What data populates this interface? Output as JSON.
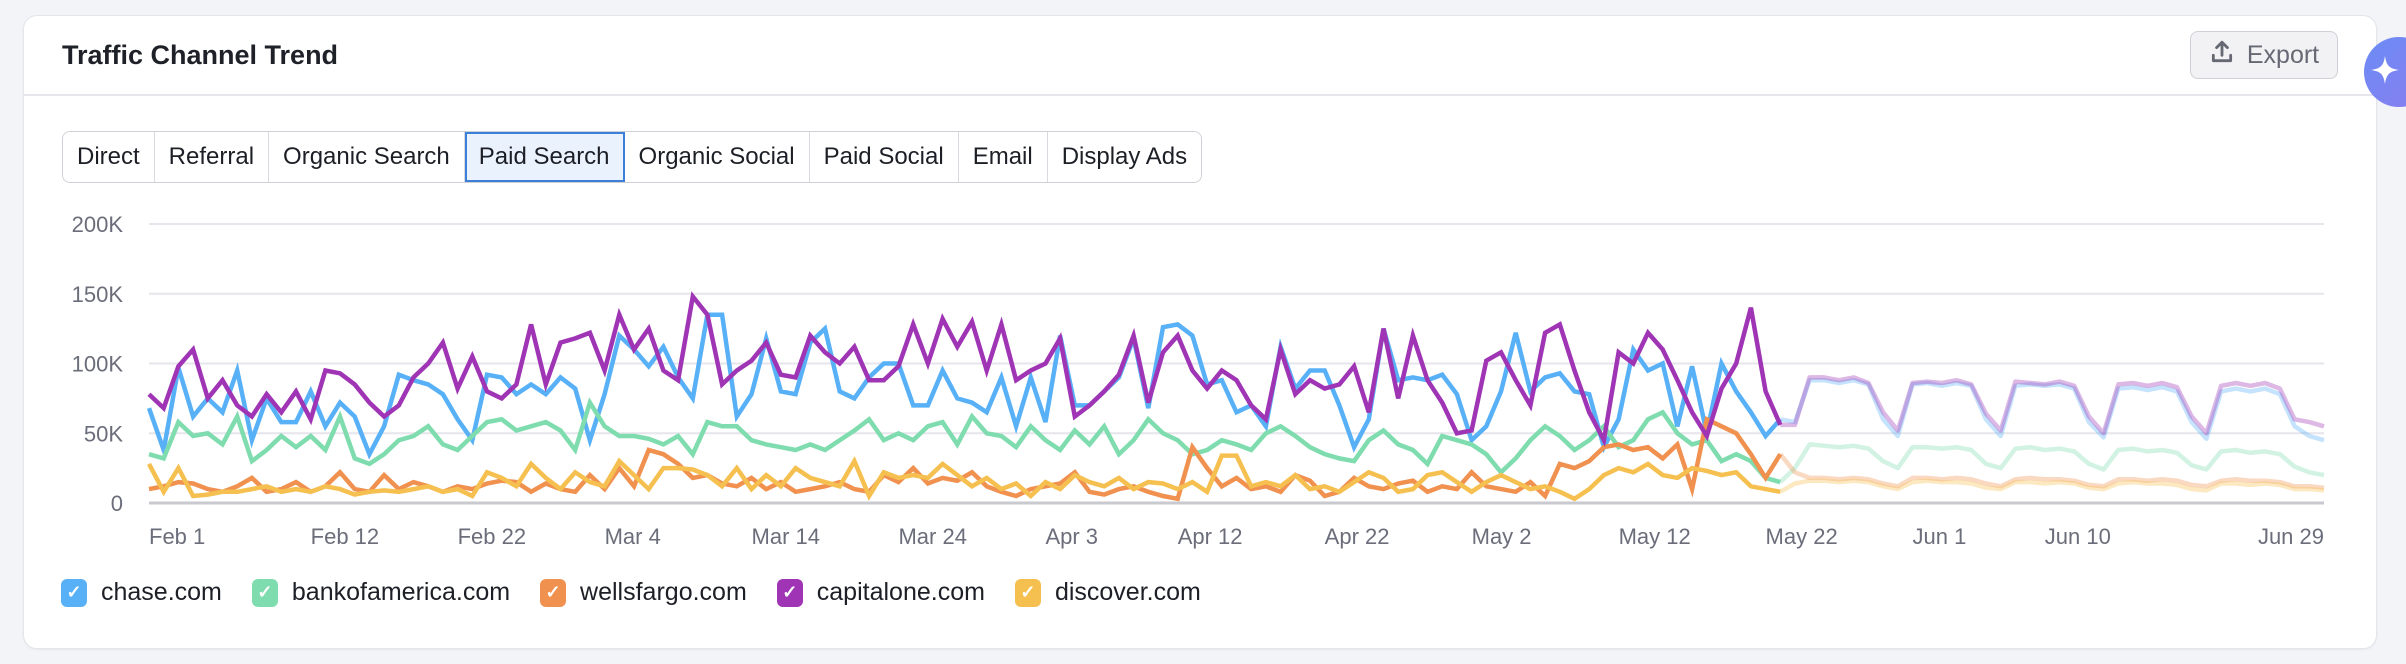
{
  "header": {
    "title": "Traffic Channel Trend",
    "export_label": "Export"
  },
  "tabs": [
    {
      "label": "Direct",
      "active": false
    },
    {
      "label": "Referral",
      "active": false
    },
    {
      "label": "Organic Search",
      "active": false
    },
    {
      "label": "Paid Search",
      "active": true
    },
    {
      "label": "Organic Social",
      "active": false
    },
    {
      "label": "Paid Social",
      "active": false
    },
    {
      "label": "Email",
      "active": false
    },
    {
      "label": "Display Ads",
      "active": false
    }
  ],
  "chart_data": {
    "type": "line",
    "title": "Traffic Channel Trend",
    "subtitle": "Paid Search",
    "ylim": [
      0,
      200000
    ],
    "y_ticks": [
      {
        "value": 0,
        "label": "0"
      },
      {
        "value": 50000,
        "label": "50K"
      },
      {
        "value": 100000,
        "label": "100K"
      },
      {
        "value": 150000,
        "label": "150K"
      },
      {
        "value": 200000,
        "label": "200K"
      }
    ],
    "x_start": "Feb 1",
    "x_end": "Jun 29",
    "x_days": 149,
    "forecast_start": "May 23",
    "x_ticks": [
      {
        "day": 0,
        "label": "Feb 1"
      },
      {
        "day": 11,
        "label": "Feb 12"
      },
      {
        "day": 21,
        "label": "Feb 22"
      },
      {
        "day": 31,
        "label": "Mar 4"
      },
      {
        "day": 41,
        "label": "Mar 14"
      },
      {
        "day": 51,
        "label": "Mar 24"
      },
      {
        "day": 61,
        "label": "Apr 3"
      },
      {
        "day": 70,
        "label": "Apr 12"
      },
      {
        "day": 80,
        "label": "Apr 22"
      },
      {
        "day": 90,
        "label": "May 2"
      },
      {
        "day": 100,
        "label": "May 12"
      },
      {
        "day": 110,
        "label": "May 22"
      },
      {
        "day": 120,
        "label": "Jun 1"
      },
      {
        "day": 129,
        "label": "Jun 10"
      },
      {
        "day": 148,
        "label": "Jun 29"
      }
    ],
    "value_unit": "thousands",
    "grid": true,
    "legend_position": "bottom-left",
    "series": [
      {
        "name": "chase.com",
        "color": "#58b0f7",
        "checked": true,
        "actual": [
          68,
          38,
          97,
          62,
          75,
          65,
          95,
          45,
          75,
          58,
          58,
          80,
          55,
          72,
          62,
          35,
          55,
          92,
          88,
          85,
          78,
          60,
          45,
          92,
          90,
          78,
          85,
          78,
          90,
          82,
          45,
          78,
          120,
          110,
          98,
          112,
          90,
          75,
          135,
          135,
          62,
          78,
          118,
          80,
          78,
          115,
          125,
          80,
          75,
          90,
          100,
          100,
          70,
          70,
          95,
          75,
          72,
          65,
          90,
          55,
          90,
          58,
          120,
          70,
          70,
          80,
          90,
          118,
          68,
          126,
          128,
          120,
          85,
          88,
          65,
          70,
          55,
          112,
          82,
          95,
          95,
          70,
          40,
          60,
          125,
          88,
          90,
          88,
          92,
          78,
          45,
          55,
          80,
          122,
          80,
          90,
          93,
          80,
          78,
          40,
          60,
          110,
          95,
          100,
          55,
          98,
          50,
          100,
          80,
          65,
          48,
          60
        ],
        "forecast": [
          58,
          88,
          88,
          86,
          88,
          85,
          60,
          48,
          85,
          86,
          84,
          86,
          84,
          60,
          48,
          84,
          85,
          84,
          85,
          82,
          58,
          47,
          82,
          83,
          81,
          83,
          80,
          58,
          46,
          80,
          82,
          80,
          82,
          78,
          55,
          48,
          45
        ]
      },
      {
        "name": "bankofamerica.com",
        "color": "#7fdcae",
        "checked": true,
        "actual": [
          35,
          32,
          58,
          48,
          50,
          42,
          62,
          30,
          38,
          48,
          40,
          48,
          38,
          62,
          32,
          28,
          35,
          45,
          48,
          55,
          42,
          38,
          48,
          58,
          60,
          52,
          55,
          58,
          52,
          38,
          72,
          55,
          48,
          48,
          46,
          42,
          48,
          35,
          58,
          55,
          55,
          45,
          42,
          40,
          38,
          42,
          38,
          45,
          52,
          60,
          45,
          50,
          45,
          55,
          58,
          42,
          62,
          50,
          48,
          40,
          55,
          45,
          38,
          52,
          42,
          55,
          35,
          45,
          60,
          50,
          45,
          35,
          38,
          45,
          42,
          38,
          50,
          55,
          48,
          40,
          35,
          32,
          30,
          45,
          52,
          42,
          38,
          28,
          48,
          45,
          42,
          35,
          22,
          32,
          45,
          55,
          48,
          38,
          45,
          55,
          40,
          45,
          60,
          65,
          50,
          42,
          45,
          30,
          35,
          30,
          18,
          15
        ],
        "forecast": [
          25,
          42,
          41,
          40,
          41,
          39,
          30,
          25,
          40,
          40,
          39,
          40,
          38,
          28,
          25,
          39,
          40,
          38,
          39,
          37,
          28,
          24,
          38,
          39,
          37,
          38,
          36,
          27,
          24,
          37,
          38,
          36,
          37,
          35,
          26,
          22,
          20
        ]
      },
      {
        "name": "wellsfargo.com",
        "color": "#f09150",
        "checked": true,
        "actual": [
          10,
          12,
          15,
          14,
          10,
          8,
          12,
          18,
          8,
          10,
          15,
          8,
          12,
          22,
          10,
          8,
          20,
          10,
          15,
          12,
          8,
          12,
          10,
          14,
          16,
          15,
          8,
          14,
          10,
          8,
          20,
          10,
          25,
          12,
          38,
          35,
          28,
          18,
          20,
          14,
          12,
          18,
          10,
          15,
          8,
          10,
          12,
          15,
          10,
          8,
          20,
          15,
          25,
          14,
          18,
          16,
          22,
          12,
          8,
          5,
          10,
          12,
          14,
          22,
          8,
          6,
          10,
          12,
          8,
          5,
          3,
          40,
          25,
          12,
          18,
          10,
          12,
          8,
          20,
          16,
          5,
          8,
          18,
          12,
          10,
          14,
          16,
          8,
          12,
          10,
          22,
          12,
          10,
          8,
          15,
          5,
          28,
          25,
          30,
          40,
          42,
          38,
          40,
          32,
          42,
          10,
          60,
          55,
          50,
          35,
          18,
          35
        ],
        "forecast": [
          22,
          18,
          18,
          17,
          18,
          17,
          14,
          12,
          18,
          18,
          17,
          18,
          17,
          14,
          12,
          17,
          18,
          17,
          17,
          16,
          13,
          12,
          17,
          17,
          16,
          17,
          16,
          13,
          12,
          16,
          17,
          16,
          16,
          15,
          12,
          12,
          11
        ]
      },
      {
        "name": "capitalone.com",
        "color": "#9f35b5",
        "checked": true,
        "actual": [
          78,
          68,
          98,
          110,
          75,
          88,
          70,
          62,
          78,
          65,
          80,
          60,
          95,
          93,
          85,
          72,
          62,
          70,
          90,
          100,
          115,
          82,
          105,
          80,
          75,
          85,
          128,
          85,
          115,
          118,
          122,
          95,
          135,
          110,
          125,
          95,
          88,
          148,
          135,
          85,
          95,
          102,
          115,
          92,
          90,
          120,
          108,
          100,
          112,
          88,
          88,
          98,
          128,
          100,
          132,
          112,
          130,
          95,
          128,
          88,
          95,
          100,
          118,
          62,
          70,
          80,
          92,
          120,
          72,
          108,
          120,
          95,
          82,
          95,
          88,
          70,
          60,
          110,
          78,
          88,
          82,
          85,
          98,
          65,
          125,
          75,
          120,
          88,
          72,
          50,
          52,
          102,
          108,
          88,
          70,
          122,
          128,
          95,
          65,
          45,
          108,
          100,
          122,
          110,
          88,
          65,
          48,
          82,
          100,
          140,
          80,
          56
        ],
        "forecast": [
          56,
          90,
          90,
          88,
          90,
          86,
          65,
          52,
          86,
          87,
          86,
          88,
          85,
          64,
          52,
          87,
          86,
          85,
          87,
          84,
          62,
          50,
          85,
          86,
          84,
          86,
          83,
          62,
          50,
          84,
          86,
          84,
          86,
          82,
          60,
          58,
          55
        ]
      },
      {
        "name": "discover.com",
        "color": "#f5c050",
        "checked": true,
        "actual": [
          28,
          8,
          25,
          5,
          6,
          8,
          8,
          10,
          12,
          8,
          10,
          8,
          12,
          10,
          6,
          8,
          9,
          8,
          10,
          12,
          8,
          10,
          5,
          22,
          18,
          12,
          28,
          18,
          10,
          22,
          15,
          12,
          30,
          20,
          10,
          25,
          25,
          24,
          20,
          12,
          25,
          10,
          20,
          12,
          25,
          18,
          15,
          12,
          30,
          5,
          22,
          18,
          20,
          18,
          28,
          20,
          12,
          18,
          10,
          14,
          5,
          15,
          10,
          20,
          15,
          12,
          18,
          10,
          15,
          14,
          10,
          15,
          8,
          34,
          34,
          12,
          15,
          12,
          20,
          10,
          12,
          8,
          15,
          22,
          18,
          8,
          10,
          20,
          22,
          15,
          8,
          15,
          20,
          15,
          10,
          12,
          8,
          3,
          10,
          20,
          25,
          22,
          28,
          20,
          18,
          25,
          23,
          20,
          22,
          12,
          10,
          8
        ],
        "forecast": [
          14,
          16,
          16,
          15,
          16,
          15,
          12,
          10,
          15,
          16,
          15,
          15,
          14,
          11,
          10,
          15,
          15,
          14,
          15,
          14,
          11,
          10,
          14,
          15,
          14,
          14,
          13,
          10,
          9,
          14,
          14,
          13,
          14,
          13,
          10,
          10,
          9
        ]
      }
    ]
  }
}
